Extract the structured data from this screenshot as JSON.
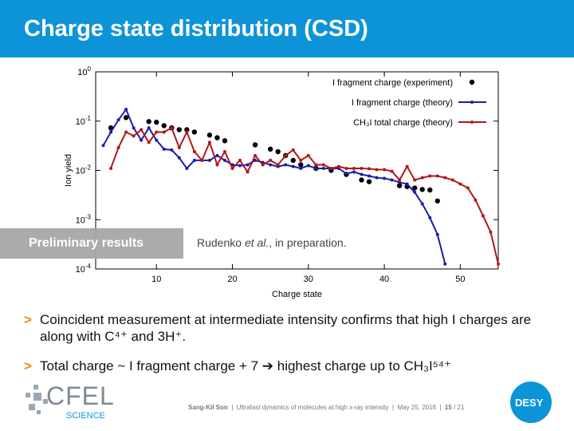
{
  "header": {
    "title": "Charge state distribution (CSD)"
  },
  "chart_data": {
    "type": "line",
    "yscale": "log",
    "xlabel": "Charge state",
    "ylabel": "Ion yield",
    "xlim": [
      2,
      55
    ],
    "xticks": [
      10,
      20,
      30,
      40,
      50
    ],
    "ylim": [
      0.0001,
      1
    ],
    "yticks": [
      {
        "value": 1,
        "label": "10",
        "sup": "0"
      },
      {
        "value": 0.1,
        "label": "10",
        "sup": "-1"
      },
      {
        "value": 0.01,
        "label": "10",
        "sup": "-2"
      },
      {
        "value": 0.001,
        "label": "10",
        "sup": "-3"
      },
      {
        "value": 0.0001,
        "label": "10",
        "sup": "-4"
      }
    ],
    "legend": "upper right",
    "series": [
      {
        "name": "I fragment charge (experiment)",
        "color": "#000000",
        "lines": false,
        "x": [
          4,
          6,
          9,
          10,
          11,
          12,
          13,
          14,
          15,
          17,
          18,
          19,
          23,
          25,
          26,
          27,
          28,
          29,
          31,
          33,
          35,
          37,
          38,
          42,
          43,
          44,
          45,
          46,
          47
        ],
        "values": [
          0.073,
          0.118,
          0.098,
          0.095,
          0.081,
          0.073,
          0.067,
          0.067,
          0.06,
          0.052,
          0.046,
          0.04,
          0.033,
          0.027,
          0.024,
          0.02,
          0.016,
          0.013,
          0.011,
          0.01,
          0.0083,
          0.0064,
          0.0059,
          0.0049,
          0.0047,
          0.0044,
          0.0041,
          0.004,
          0.0024
        ]
      },
      {
        "name": "I fragment charge (theory)",
        "color": "#1c1caa",
        "lines": true,
        "x": [
          3,
          4,
          5,
          6,
          7,
          8,
          9,
          10,
          11,
          12,
          13,
          14,
          15,
          16,
          17,
          18,
          19,
          20,
          21,
          22,
          23,
          24,
          25,
          26,
          27,
          28,
          29,
          30,
          31,
          32,
          33,
          34,
          35,
          36,
          37,
          38,
          39,
          40,
          41,
          42,
          43,
          44,
          45,
          46,
          47,
          48
        ],
        "values": [
          0.032,
          0.06,
          0.106,
          0.173,
          0.073,
          0.041,
          0.073,
          0.041,
          0.027,
          0.026,
          0.018,
          0.011,
          0.016,
          0.016,
          0.016,
          0.02,
          0.016,
          0.013,
          0.0125,
          0.013,
          0.016,
          0.0145,
          0.013,
          0.012,
          0.013,
          0.012,
          0.011,
          0.0125,
          0.011,
          0.011,
          0.011,
          0.011,
          0.0086,
          0.0093,
          0.0083,
          0.0077,
          0.0071,
          0.0069,
          0.0064,
          0.0057,
          0.0053,
          0.0036,
          0.0021,
          0.0011,
          0.0005,
          0.000126
        ]
      },
      {
        "name": "CH₃I total charge (theory)",
        "color": "#b01818",
        "lines": true,
        "x": [
          4,
          5,
          6,
          7,
          8,
          9,
          10,
          11,
          12,
          13,
          14,
          15,
          16,
          17,
          18,
          19,
          20,
          21,
          22,
          23,
          24,
          25,
          26,
          27,
          28,
          29,
          30,
          31,
          32,
          33,
          34,
          35,
          36,
          37,
          38,
          39,
          40,
          41,
          42,
          43,
          44,
          45,
          46,
          47,
          48,
          49,
          50,
          51,
          52,
          53,
          54,
          55
        ],
        "values": [
          0.011,
          0.029,
          0.06,
          0.05,
          0.067,
          0.037,
          0.06,
          0.06,
          0.073,
          0.029,
          0.06,
          0.024,
          0.016,
          0.037,
          0.013,
          0.024,
          0.011,
          0.016,
          0.0093,
          0.02,
          0.013,
          0.016,
          0.013,
          0.02,
          0.026,
          0.016,
          0.02,
          0.013,
          0.013,
          0.011,
          0.012,
          0.011,
          0.011,
          0.011,
          0.0108,
          0.0104,
          0.0104,
          0.0096,
          0.0064,
          0.012,
          0.0064,
          0.0071,
          0.0077,
          0.0077,
          0.0071,
          0.0064,
          0.0053,
          0.0044,
          0.0025,
          0.0012,
          0.00056,
          0.000126
        ]
      }
    ]
  },
  "badge": "Preliminary results",
  "citation": [
    "Rudenko ",
    "et al.",
    ", in preparation."
  ],
  "bullets": [
    "Coincident measurement at intermediate intensity confirms that high I charges are along with C⁴⁺ and 3H⁺.",
    "Total charge ~ I fragment charge + 7 ➔ highest charge up to CH₃I⁵⁴⁺"
  ],
  "footer": {
    "author": "Sang-Kil Son",
    "parts": [
      "Ultrafast dynamics of molecules at high x-ray intensity",
      "May 25, 2016"
    ],
    "page": "15",
    "total": "/ 21"
  },
  "logos": {
    "left": "CFEL",
    "left_sub": "SCIENCE",
    "right": "DESY"
  }
}
